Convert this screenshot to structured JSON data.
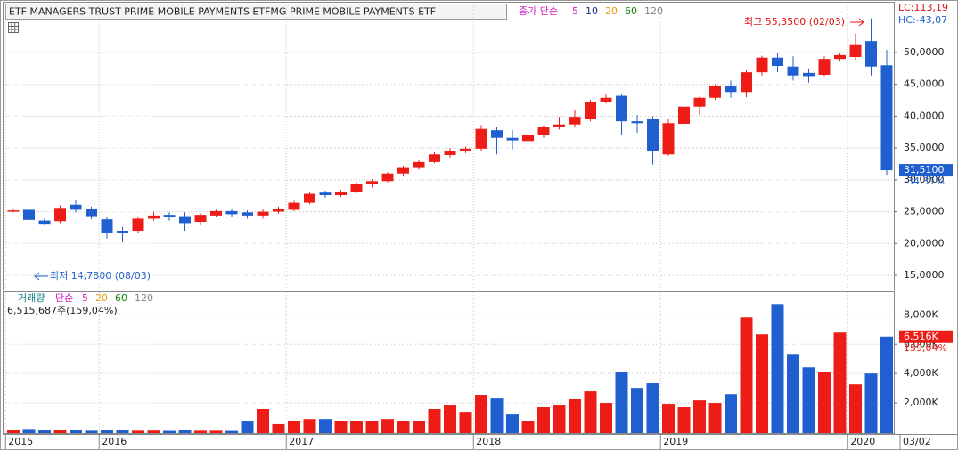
{
  "chart_data": [
    {
      "type": "candlestick",
      "title": "ETF MANAGERS TRUST PRIME MOBILE PAYMENTS  ETFMG PRIME MOBILE PAYMENTS ETF",
      "ma_label": "종가 단순",
      "ma_periods": [
        5,
        10,
        20,
        60,
        120
      ],
      "ma_colors": [
        "#d020c0",
        "#1a2a80",
        "#e0a000",
        "#108010",
        "#808080"
      ],
      "lc_label": "LC:113,19",
      "hc_label": "HC:-43,07",
      "high_label": "최고 55,3500 (02/03)",
      "low_label": "최저 14,7800 (08/03)",
      "last_price_label": "31,5100",
      "change_label": "-34,31%",
      "up_color": "#ee1c16",
      "down_color": "#1f5fd0",
      "categories": [
        "2015",
        null,
        null,
        null,
        null,
        null,
        "2016",
        null,
        null,
        null,
        null,
        null,
        null,
        null,
        null,
        null,
        null,
        null,
        "2017",
        null,
        null,
        null,
        null,
        null,
        null,
        null,
        null,
        null,
        null,
        null,
        "2018",
        null,
        null,
        null,
        null,
        null,
        null,
        null,
        null,
        null,
        null,
        null,
        "2019",
        null,
        null,
        null,
        null,
        null,
        null,
        null,
        null,
        null,
        null,
        null,
        "2020",
        null,
        "03/02"
      ],
      "open": [
        25.0,
        25.3,
        23.6,
        23.5,
        26.1,
        25.4,
        23.8,
        22.0,
        22.0,
        23.9,
        24.5,
        24.3,
        23.4,
        24.4,
        25.1,
        24.9,
        24.4,
        25.0,
        25.3,
        26.4,
        28.0,
        27.6,
        28.1,
        29.3,
        29.8,
        31.0,
        32.0,
        32.8,
        33.9,
        34.6,
        34.9,
        37.8,
        36.6,
        36.1,
        37.0,
        38.3,
        38.7,
        39.5,
        42.3,
        43.2,
        39.2,
        39.5,
        34.0,
        38.8,
        41.5,
        42.9,
        44.7,
        43.8,
        46.9,
        49.2,
        47.8,
        46.8,
        46.5,
        49.0,
        49.3,
        51.8,
        48.0
      ],
      "high": [
        25.4,
        26.8,
        24.0,
        26.0,
        26.8,
        25.8,
        24.2,
        22.6,
        24.2,
        25.0,
        24.9,
        24.9,
        24.8,
        25.3,
        25.4,
        25.2,
        25.4,
        25.8,
        26.7,
        28.0,
        28.3,
        28.4,
        29.6,
        30.1,
        31.2,
        32.2,
        33.1,
        34.3,
        35.0,
        35.2,
        38.6,
        38.3,
        37.8,
        37.4,
        38.6,
        39.9,
        41.0,
        42.6,
        43.4,
        43.4,
        40.2,
        40.0,
        39.5,
        42.0,
        43.1,
        45.0,
        45.6,
        47.2,
        49.5,
        50.0,
        49.4,
        47.5,
        49.4,
        50.0,
        53.0,
        55.35,
        50.4
      ],
      "low": [
        24.9,
        14.78,
        22.8,
        23.2,
        24.9,
        23.8,
        20.8,
        20.2,
        21.7,
        23.6,
        23.6,
        22.0,
        23.0,
        24.1,
        24.2,
        23.9,
        23.9,
        24.7,
        25.1,
        26.2,
        27.2,
        27.3,
        27.9,
        28.8,
        29.6,
        30.5,
        31.6,
        32.6,
        33.5,
        34.2,
        34.5,
        34.0,
        34.8,
        35.0,
        36.6,
        37.9,
        38.3,
        39.2,
        42.0,
        37.0,
        37.4,
        32.4,
        33.8,
        38.2,
        40.2,
        42.6,
        42.9,
        43.0,
        46.4,
        46.9,
        45.6,
        45.3,
        46.3,
        48.6,
        48.9,
        46.4,
        30.8
      ],
      "close": [
        25.2,
        23.7,
        23.1,
        25.6,
        25.3,
        24.3,
        21.6,
        21.7,
        23.9,
        24.4,
        24.1,
        23.2,
        24.5,
        25.1,
        24.6,
        24.4,
        25.0,
        25.4,
        26.4,
        27.8,
        27.6,
        28.1,
        29.3,
        29.8,
        31.0,
        32.0,
        32.8,
        34.0,
        34.6,
        34.9,
        38.0,
        36.6,
        36.2,
        37.0,
        38.3,
        38.7,
        39.9,
        42.3,
        42.9,
        39.2,
        38.9,
        34.6,
        38.9,
        41.5,
        42.9,
        44.7,
        43.8,
        46.9,
        49.2,
        47.9,
        46.4,
        46.3,
        49.0,
        49.6,
        51.3,
        47.8,
        31.51
      ],
      "ylim": [
        12.76,
        57.7
      ],
      "yticks": [
        {
          "value": 15,
          "label": "15,0000"
        },
        {
          "value": 20,
          "label": "20,0000"
        },
        {
          "value": 25,
          "label": "25,0000"
        },
        {
          "value": 30,
          "label": "30,0000"
        },
        {
          "value": 35,
          "label": "35,0000"
        },
        {
          "value": 40,
          "label": "40,0000"
        },
        {
          "value": 45,
          "label": "45,0000"
        },
        {
          "value": 50,
          "label": "50,0000"
        }
      ],
      "grid": true
    },
    {
      "type": "bar",
      "legend_label": "거래량",
      "ma_label": "단순",
      "ma_periods": [
        5,
        20,
        60,
        120
      ],
      "ma_colors": [
        "#d020c0",
        "#e0a000",
        "#108010",
        "#808080"
      ],
      "volume_label": "6,515,687주(159,04%)",
      "last_value_label": "6,516K",
      "change_label": "159,04%",
      "values": [
        130,
        220,
        120,
        150,
        120,
        100,
        130,
        150,
        100,
        110,
        90,
        140,
        100,
        100,
        90,
        730,
        1580,
        550,
        790,
        900,
        900,
        790,
        790,
        790,
        900,
        730,
        730,
        1580,
        1820,
        1390,
        2550,
        2300,
        1210,
        730,
        1700,
        1820,
        2250,
        2790,
        2000,
        4120,
        3030,
        3340,
        1940,
        1700,
        2180,
        2000,
        2600,
        7820,
        6670,
        8730,
        5330,
        4420,
        4120,
        6790,
        3270,
        4000,
        6515.687
      ],
      "ylim": [
        0,
        9600
      ],
      "yticks": [
        {
          "value": 2000,
          "label": "2,000K"
        },
        {
          "value": 4000,
          "label": "4,000K"
        },
        {
          "value": 6000,
          "label": "6,000K"
        },
        {
          "value": 8000,
          "label": "8,000K"
        }
      ],
      "grid": true
    }
  ]
}
